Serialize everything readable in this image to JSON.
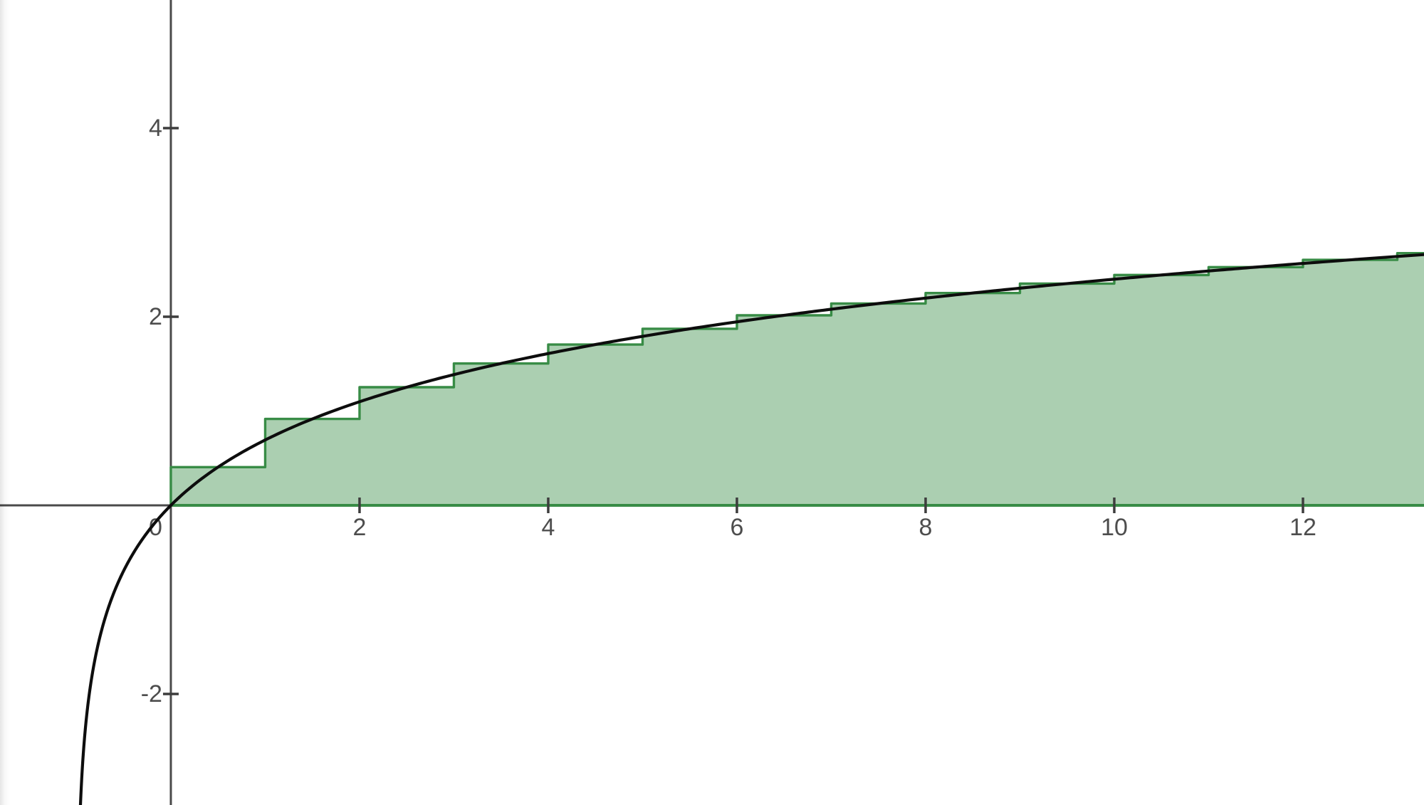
{
  "app": {
    "kind": "graphing-calculator-view",
    "background_color": "#ffffff"
  },
  "chart_data": {
    "type": "area",
    "title": "",
    "function": "y = ln(x+1)",
    "function_id": "ln(x+1)",
    "curve_description": "smooth black curve of y = ln(x+1), plunging to -infinity as x approaches -1",
    "riemann": {
      "method": "midpoint",
      "dx": 1,
      "start_x": 0,
      "num_rects_visible": 14,
      "midpoint_heights": [
        0.4055,
        0.9163,
        1.2528,
        1.5041,
        1.7047,
        1.8718,
        2.0149,
        2.1401,
        2.2513,
        2.3514,
        2.4423,
        2.5257,
        2.6027,
        2.6741
      ]
    },
    "view": {
      "xmin": -1.811,
      "xmax": 13.283,
      "ymin": -3.177,
      "ymax": 5.358
    },
    "x_ticks": [
      {
        "value": 2,
        "label": "2"
      },
      {
        "value": 4,
        "label": "4"
      },
      {
        "value": 6,
        "label": "6"
      },
      {
        "value": 8,
        "label": "8"
      },
      {
        "value": 10,
        "label": "10"
      },
      {
        "value": 12,
        "label": "12"
      }
    ],
    "y_ticks": [
      {
        "value": 4,
        "label": "4"
      },
      {
        "value": 2,
        "label": "2"
      },
      {
        "value": -2,
        "label": "-2"
      }
    ],
    "origin_label": "0",
    "grid": false,
    "legend": null,
    "colors": {
      "curve": "#0d0d0d",
      "riemann_stroke": "#388c46",
      "riemann_fill": "rgba(56,140,70,0.42)",
      "axis": "#4a4a4a",
      "tick": "#3d3d3d",
      "tick_label": "#4d4d4d"
    },
    "stroke_widths": {
      "curve": 4.2,
      "riemann": 3.4,
      "baseline": 4,
      "axis": 3,
      "tick": 3.5
    },
    "tick_label_font_px": 34
  }
}
